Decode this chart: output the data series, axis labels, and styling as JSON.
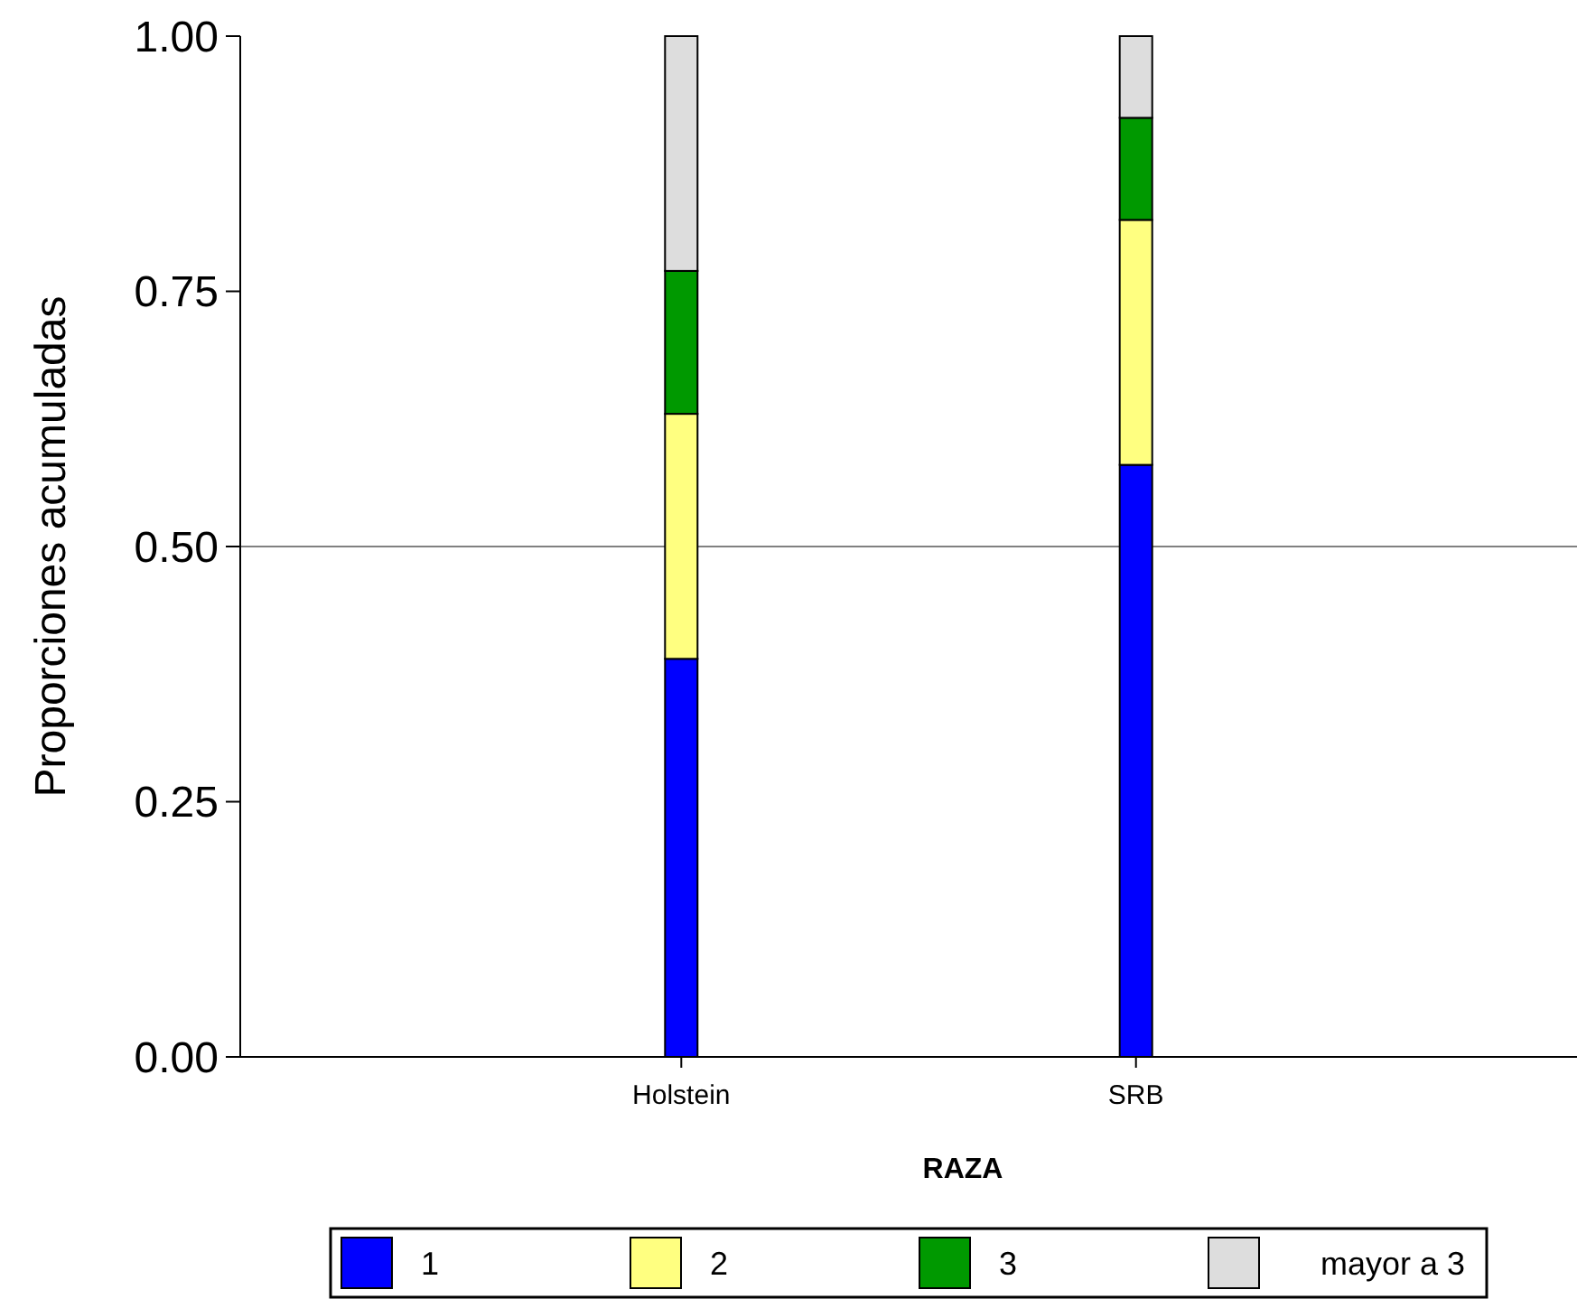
{
  "chart_data": {
    "type": "bar",
    "stacked": true,
    "xlabel": "RAZA",
    "ylabel": "Proporciones acumuladas",
    "categories": [
      "Holstein",
      "SRB"
    ],
    "series": [
      {
        "name": "1",
        "color": "#0000ff",
        "values": [
          0.39,
          0.58
        ]
      },
      {
        "name": "2",
        "color": "#ffff80",
        "values": [
          0.24,
          0.24
        ]
      },
      {
        "name": "3",
        "color": "#009900",
        "values": [
          0.14,
          0.1
        ]
      },
      {
        "name": "mayor a 3",
        "color": "#dddddd",
        "values": [
          0.23,
          0.08
        ]
      }
    ],
    "ylim": [
      0,
      1
    ],
    "yticks": [
      {
        "value": 0,
        "label": "0.00"
      },
      {
        "value": 0.25,
        "label": "0.25"
      },
      {
        "value": 0.5,
        "label": "0.50"
      },
      {
        "value": 0.75,
        "label": "0.75"
      },
      {
        "value": 1,
        "label": "1.00"
      }
    ],
    "ref_lines": [
      {
        "axis": "y",
        "value": 0.5,
        "color": "#808080"
      }
    ],
    "legend": "bottom"
  }
}
